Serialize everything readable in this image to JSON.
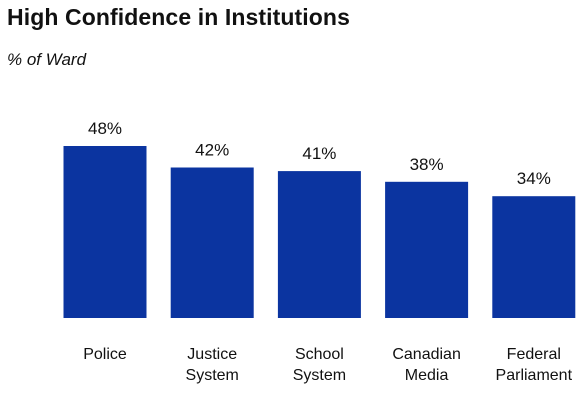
{
  "chart_data": {
    "type": "bar",
    "title": "High Confidence in Institutions",
    "subtitle": "% of Ward",
    "categories": [
      [
        "Police"
      ],
      [
        "Justice",
        "System"
      ],
      [
        "School",
        "System"
      ],
      [
        "Canadian",
        "Media"
      ],
      [
        "Federal",
        "Parliament"
      ]
    ],
    "values": [
      48,
      42,
      41,
      38,
      34
    ],
    "value_labels": [
      "48%",
      "42%",
      "41%",
      "38%",
      "34%"
    ],
    "ylim": [
      0,
      48
    ],
    "grid": false,
    "legend": "none",
    "colors": {
      "bar": "#0b34a0"
    }
  }
}
